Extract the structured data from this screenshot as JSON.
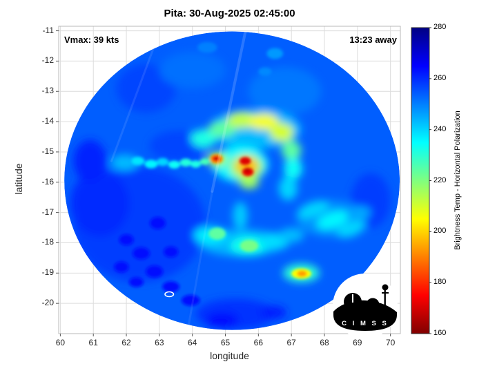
{
  "title": "Pita: 30-Aug-2025 02:45:00",
  "annotations": {
    "vmax_label": "Vmax: 39 kts",
    "time_away_label": "13:23 away"
  },
  "axes": {
    "xlabel": "longitude",
    "ylabel": "latitude"
  },
  "colorbar_label": "Brightness Temp - Horizontal Polarization",
  "logo_text": "C I M S S",
  "chart_data": {
    "type": "heatmap",
    "title": "Pita: 30-Aug-2025 02:45:00",
    "storm": "Pita",
    "datetime": "30-Aug-2025 02:45:00",
    "vmax_kts": 39,
    "time_away": "13:23",
    "xlabel": "longitude",
    "ylabel": "latitude",
    "x_range": [
      59.95,
      70.3
    ],
    "y_range": [
      -21.0,
      -10.85
    ],
    "x_ticks": [
      60,
      61,
      62,
      63,
      64,
      65,
      66,
      67,
      68,
      69,
      70
    ],
    "y_ticks": [
      -11,
      -12,
      -13,
      -14,
      -15,
      -16,
      -17,
      -18,
      -19,
      -20
    ],
    "grid": true,
    "colorbar": {
      "label": "Brightness Temp - Horizontal Polarization",
      "range": [
        160,
        280
      ],
      "ticks": [
        160,
        180,
        200,
        220,
        240,
        260,
        280
      ],
      "stops": [
        [
          280,
          "#000083"
        ],
        [
          265,
          "#0000ff"
        ],
        [
          235,
          "#00ffff"
        ],
        [
          205,
          "#ffff00"
        ],
        [
          175,
          "#ff0000"
        ],
        [
          160,
          "#800000"
        ]
      ]
    },
    "disk": {
      "center": [
        65.2,
        -15.95
      ],
      "rx_deg": 5.08,
      "ry_deg": 4.93,
      "base_temp_k": 254
    },
    "features_format": [
      "lon",
      "lat",
      "rx_deg",
      "ry_deg",
      "brightness_temp_K",
      "rotation_deg_optional"
    ],
    "features": [
      [
        62.4,
        -17.4,
        2.0,
        1.9,
        258
      ],
      [
        61.2,
        -16.7,
        0.9,
        1.1,
        260
      ],
      [
        60.9,
        -15.3,
        0.5,
        0.7,
        261
      ],
      [
        62.6,
        -12.9,
        0.9,
        0.8,
        257
      ],
      [
        69.4,
        -16.6,
        0.6,
        0.9,
        258
      ],
      [
        65.3,
        -20.35,
        1.2,
        0.5,
        259
      ],
      [
        63.6,
        -14.8,
        0.9,
        0.5,
        257
      ],
      [
        66.8,
        -13.0,
        1.1,
        0.8,
        251
      ],
      [
        64.0,
        -12.3,
        1.0,
        0.6,
        252
      ],
      [
        62.0,
        -17.9,
        0.22,
        0.18,
        264
      ],
      [
        62.45,
        -18.35,
        0.26,
        0.2,
        263
      ],
      [
        61.85,
        -18.8,
        0.22,
        0.18,
        264
      ],
      [
        62.85,
        -18.95,
        0.26,
        0.2,
        264
      ],
      [
        62.3,
        -19.3,
        0.22,
        0.16,
        264
      ],
      [
        63.35,
        -19.45,
        0.26,
        0.18,
        263
      ],
      [
        63.95,
        -19.9,
        0.28,
        0.18,
        264
      ],
      [
        62.95,
        -17.35,
        0.24,
        0.2,
        263
      ],
      [
        63.35,
        -18.3,
        0.22,
        0.18,
        263
      ],
      [
        64.9,
        -20.55,
        0.5,
        0.25,
        263
      ],
      [
        66.45,
        -20.3,
        0.4,
        0.22,
        262
      ],
      [
        65.9,
        -14.25,
        1.4,
        0.65,
        243
      ],
      [
        64.35,
        -14.55,
        0.4,
        0.3,
        232
      ],
      [
        64.9,
        -14.25,
        0.42,
        0.26,
        224
      ],
      [
        65.5,
        -13.95,
        0.45,
        0.26,
        212
      ],
      [
        66.15,
        -14.0,
        0.45,
        0.26,
        206
      ],
      [
        66.7,
        -14.35,
        0.36,
        0.3,
        210
      ],
      [
        67.0,
        -14.95,
        0.3,
        0.32,
        224
      ],
      [
        67.05,
        -15.55,
        0.28,
        0.36,
        234
      ],
      [
        66.9,
        -16.2,
        0.28,
        0.4,
        240
      ],
      [
        61.95,
        -15.35,
        0.42,
        0.26,
        243
      ],
      [
        62.35,
        -15.3,
        0.2,
        0.14,
        238
      ],
      [
        62.75,
        -15.4,
        0.2,
        0.14,
        236
      ],
      [
        63.1,
        -15.33,
        0.18,
        0.13,
        240
      ],
      [
        63.45,
        -15.42,
        0.18,
        0.13,
        234
      ],
      [
        63.8,
        -15.35,
        0.18,
        0.13,
        231
      ],
      [
        64.1,
        -15.4,
        0.16,
        0.12,
        232
      ],
      [
        64.38,
        -15.32,
        0.15,
        0.11,
        227
      ],
      [
        65.45,
        -15.4,
        0.85,
        0.6,
        236
      ],
      [
        65.63,
        -15.5,
        0.5,
        0.42,
        216
      ],
      [
        64.75,
        -15.25,
        0.32,
        0.24,
        216
      ],
      [
        65.65,
        -15.45,
        0.34,
        0.3,
        197
      ],
      [
        64.73,
        -15.23,
        0.2,
        0.16,
        193
      ],
      [
        65.72,
        -16.0,
        0.3,
        0.22,
        216
      ],
      [
        64.72,
        -15.22,
        0.13,
        0.1,
        176
      ],
      [
        65.6,
        -15.3,
        0.17,
        0.13,
        171
      ],
      [
        65.68,
        -15.66,
        0.17,
        0.14,
        172
      ],
      [
        64.72,
        -15.22,
        0.06,
        0.05,
        163
      ],
      [
        65.66,
        -15.6,
        0.07,
        0.06,
        166
      ],
      [
        65.5,
        -18.0,
        1.3,
        0.45,
        244
      ],
      [
        64.55,
        -17.75,
        0.5,
        0.28,
        237
      ],
      [
        64.75,
        -17.7,
        0.26,
        0.2,
        224
      ],
      [
        65.7,
        -18.1,
        0.55,
        0.32,
        233
      ],
      [
        65.72,
        -18.1,
        0.28,
        0.2,
        221
      ],
      [
        66.5,
        -17.95,
        0.45,
        0.28,
        239
      ],
      [
        67.0,
        -17.75,
        0.38,
        0.24,
        243
      ],
      [
        65.45,
        -17.1,
        0.22,
        0.45,
        241
      ],
      [
        68.2,
        -17.2,
        1.05,
        0.6,
        248
      ],
      [
        67.65,
        -16.9,
        0.5,
        0.24,
        240,
        -20
      ],
      [
        68.25,
        -17.25,
        0.5,
        0.26,
        236,
        -20
      ],
      [
        68.8,
        -17.55,
        0.45,
        0.24,
        240,
        -20
      ],
      [
        69.1,
        -17.0,
        0.3,
        0.2,
        245
      ],
      [
        67.3,
        -19.0,
        0.55,
        0.3,
        230
      ],
      [
        67.3,
        -19.02,
        0.3,
        0.17,
        205
      ],
      [
        67.32,
        -19.02,
        0.15,
        0.1,
        193
      ],
      [
        66.5,
        -11.75,
        0.25,
        0.18,
        247
      ],
      [
        66.2,
        -12.35,
        0.2,
        0.14,
        249
      ],
      [
        64.45,
        -11.55,
        0.3,
        0.18,
        250
      ]
    ],
    "seams": [
      {
        "x1": 65.62,
        "y1": -10.95,
        "x2": 64.6,
        "y2": -16.3,
        "opacity": 0.16,
        "width": 4
      },
      {
        "x1": 64.6,
        "y1": -16.3,
        "x2": 63.85,
        "y2": -20.95,
        "opacity": 0.08,
        "width": 3
      },
      {
        "x1": 62.95,
        "y1": -11.2,
        "x2": 61.55,
        "y2": -15.3,
        "opacity": 0.1,
        "width": 3
      }
    ],
    "eye_marker": {
      "lon": 63.3,
      "lat": -19.7,
      "rx_deg": 0.13,
      "ry_deg": 0.08
    }
  }
}
